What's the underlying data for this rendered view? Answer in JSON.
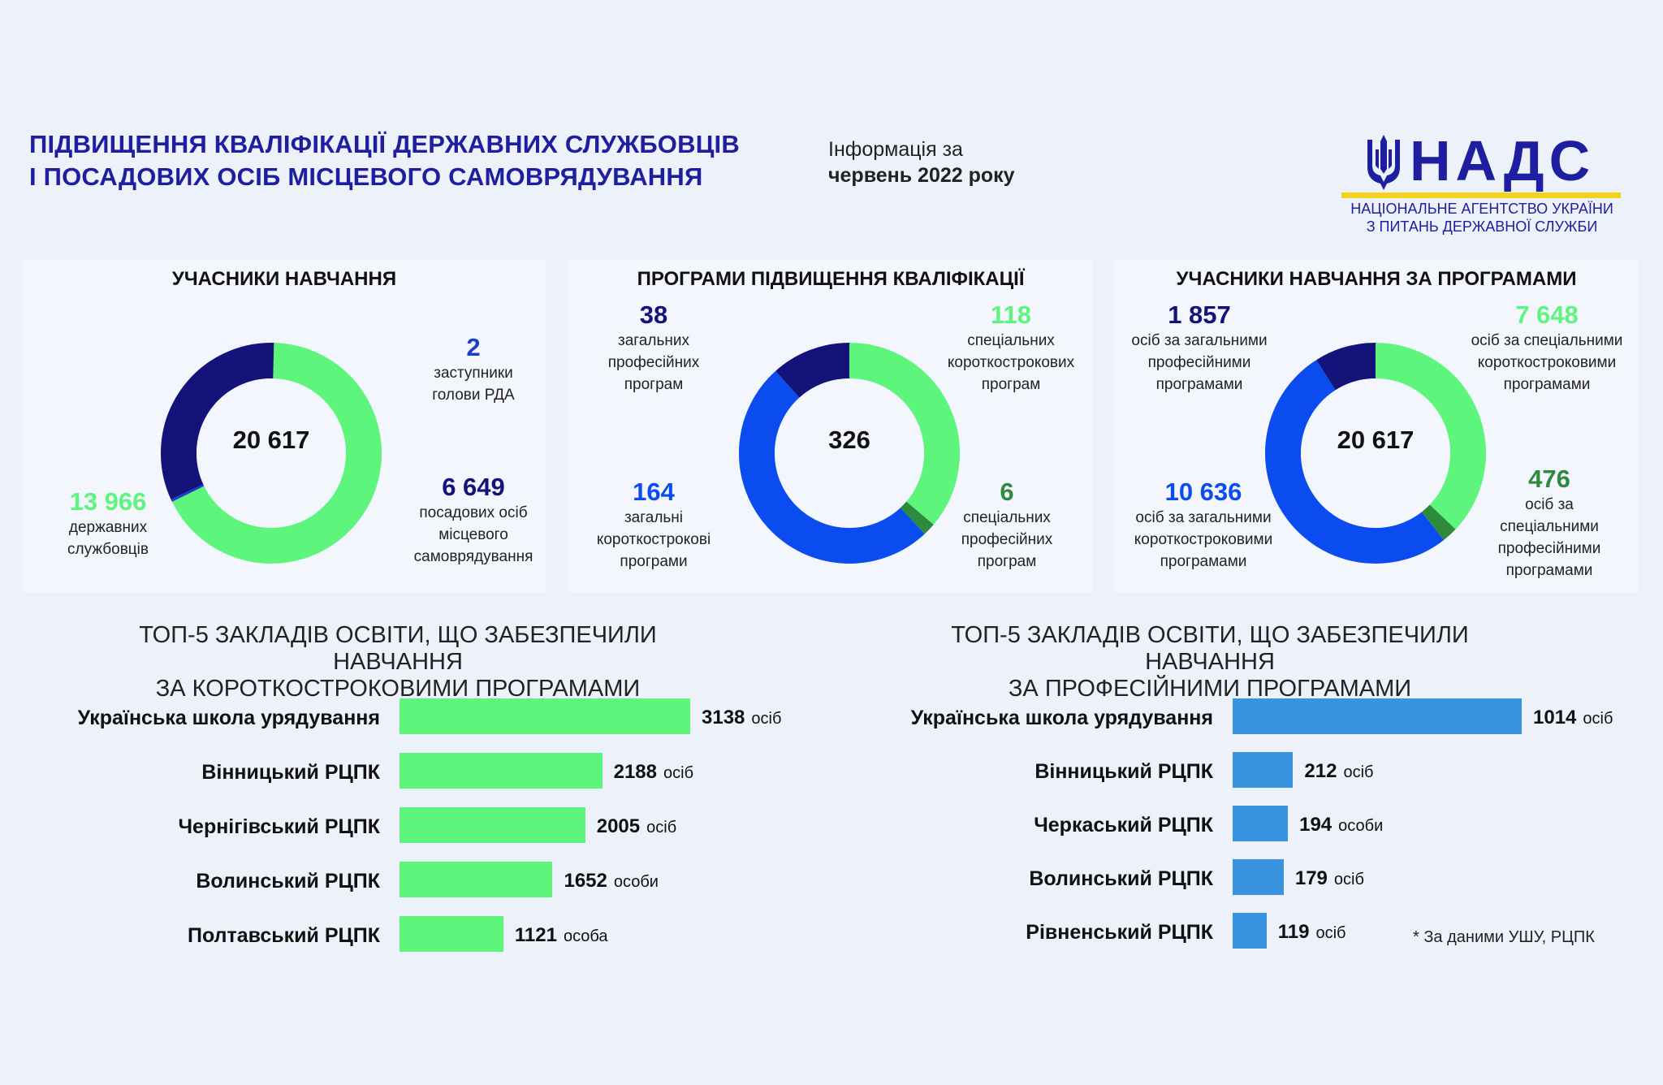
{
  "header": {
    "title_line1": "ПІДВИЩЕННЯ КВАЛІФІКАЦІЇ ДЕРЖАВНИХ СЛУЖБОВЦІВ",
    "title_line2": "І ПОСАДОВИХ ОСІБ МІСЦЕВОГО САМОВРЯДУВАННЯ",
    "period_line1": "Інформація за",
    "period_line2": "червень 2022 року"
  },
  "logo": {
    "name": "НАДС",
    "subtitle_line1": "НАЦІОНАЛЬНЕ АГЕНТСТВО УКРАЇНИ",
    "subtitle_line2": "З ПИТАНЬ ДЕРЖАВНОЇ СЛУЖБИ",
    "icon": "trident-icon",
    "accent": "#f2d31b"
  },
  "colors": {
    "light_green": "#5ef57d",
    "dark_navy": "#13137a",
    "bright_blue": "#0a4cf0",
    "dark_green": "#2e8a3d",
    "title_blue": "#1e1fa0",
    "bar_blue": "#3894de"
  },
  "chart_data": [
    {
      "type": "donut",
      "title": "УЧАСНИКИ НАВЧАННЯ",
      "total": "20 617",
      "series": [
        {
          "display": "13 966",
          "value": 13966,
          "label": [
            "державних",
            "службовців"
          ],
          "color": "#5ef57d"
        },
        {
          "display": "2",
          "value": 2,
          "label": [
            "заступники",
            "голови РДА"
          ],
          "color": "#1a3ec9"
        },
        {
          "display": "6 649",
          "value": 6649,
          "label": [
            "посадових осіб",
            "місцевого",
            "самоврядування"
          ],
          "color": "#13137a"
        }
      ]
    },
    {
      "type": "donut",
      "title": "ПРОГРАМИ ПІДВИЩЕННЯ КВАЛІФІКАЦІЇ",
      "total": "326",
      "series": [
        {
          "display": "118",
          "value": 118,
          "label": [
            "спеціальних",
            "короткострокових",
            "програм"
          ],
          "color": "#5ef57d"
        },
        {
          "display": "6",
          "value": 6,
          "label": [
            "спеціальних",
            "професійних",
            "програм"
          ],
          "color": "#2e8a3d"
        },
        {
          "display": "164",
          "value": 164,
          "label": [
            "загальні",
            "короткострокові",
            "програми"
          ],
          "color": "#0a4cf0"
        },
        {
          "display": "38",
          "value": 38,
          "label": [
            "загальних",
            "професійних",
            "програм"
          ],
          "color": "#13137a"
        }
      ]
    },
    {
      "type": "donut",
      "title": "УЧАСНИКИ НАВЧАННЯ ЗА ПРОГРАМАМИ",
      "total": "20 617",
      "series": [
        {
          "display": "7 648",
          "value": 7648,
          "label": [
            "осіб за спеціальними",
            "короткостроковими",
            "програмами"
          ],
          "color": "#5ef57d"
        },
        {
          "display": "476",
          "value": 476,
          "label": [
            "осіб за",
            "спеціальними",
            "професійними",
            "програмами"
          ],
          "color": "#2e8a3d"
        },
        {
          "display": "10 636",
          "value": 10636,
          "label": [
            "осіб за загальними",
            "короткостроковими",
            "програмами"
          ],
          "color": "#0a4cf0"
        },
        {
          "display": "1 857",
          "value": 1857,
          "label": [
            "осіб за загальними",
            "професійними",
            "програмами"
          ],
          "color": "#13137a"
        }
      ]
    },
    {
      "type": "bar",
      "orientation": "horizontal",
      "title_line1": "ТОП-5 ЗАКЛАДІВ ОСВІТИ, ЩО ЗАБЕЗПЕЧИЛИ НАВЧАННЯ",
      "title_line2": "ЗА КОРОТКОСТРОКОВИМИ ПРОГРАМАМИ",
      "color": "#5ef57d",
      "max": 3138,
      "categories": [
        "Українська школа урядування",
        "Вінницький РЦПК",
        "Чернігівський РЦПК",
        "Волинський РЦПК",
        "Полтавський РЦПК"
      ],
      "values": [
        3138,
        2188,
        2005,
        1652,
        1121
      ],
      "units": [
        "осіб",
        "осіб",
        "осіб",
        "особи",
        "особа"
      ]
    },
    {
      "type": "bar",
      "orientation": "horizontal",
      "title_line1": "ТОП-5 ЗАКЛАДІВ ОСВІТИ, ЩО ЗАБЕЗПЕЧИЛИ НАВЧАННЯ",
      "title_line2": "ЗА ПРОФЕСІЙНИМИ ПРОГРАМАМИ",
      "color": "#3894de",
      "max": 1014,
      "categories": [
        "Українська школа урядування",
        "Вінницький РЦПК",
        "Черкаський РЦПК",
        "Волинський РЦПК",
        "Рівненський РЦПК"
      ],
      "values": [
        1014,
        212,
        194,
        179,
        119
      ],
      "units": [
        "осіб",
        "осіб",
        "особи",
        "осіб",
        "осіб"
      ]
    }
  ],
  "footnote": "* За даними УШУ, РЦПК"
}
